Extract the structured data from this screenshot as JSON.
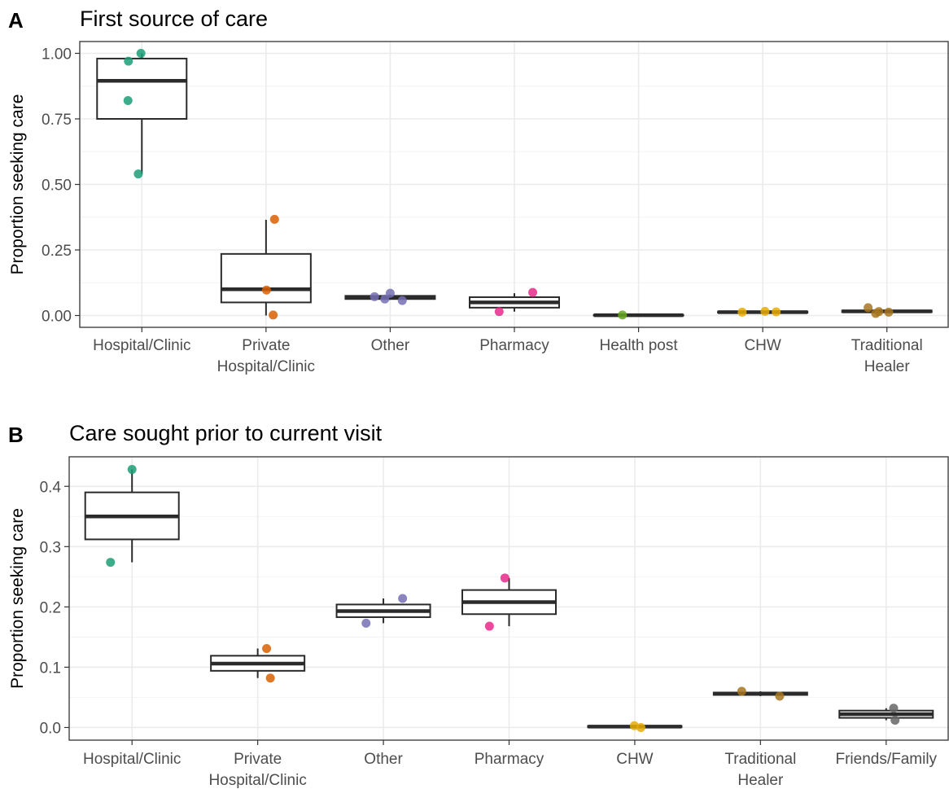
{
  "colors": {
    "hospital_clinic": "#1b9e77",
    "private_hospital_clinic": "#d95f02",
    "other": "#7570b3",
    "pharmacy": "#e7298a",
    "health_post": "#66a61e",
    "chw": "#e6ab02",
    "traditional_healer": "#a6761d",
    "friends_family": "#666666"
  },
  "chart_data": [
    {
      "type": "box",
      "panel_label": "A",
      "title": "First source of care",
      "ylabel": "Proportion seeking care",
      "xlabel": "",
      "ylim": [
        -0.045,
        1.045
      ],
      "yticks": [
        0.0,
        0.25,
        0.5,
        0.75,
        1.0
      ],
      "ytick_labels": [
        "0.00",
        "0.25",
        "0.50",
        "0.75",
        "1.00"
      ],
      "grid": true,
      "categories": [
        {
          "label": "Hospital/Clinic",
          "lines": [
            "Hospital/Clinic"
          ],
          "color_key": "hospital_clinic",
          "stats": {
            "min": 0.54,
            "q1": 0.75,
            "median": 0.895,
            "q3": 0.98,
            "max": 1.0
          },
          "points": [
            {
              "x_jitter": -0.3,
              "y": 0.97
            },
            {
              "x_jitter": -0.02,
              "y": 1.0
            },
            {
              "x_jitter": -0.31,
              "y": 0.82
            },
            {
              "x_jitter": -0.08,
              "y": 0.54
            }
          ]
        },
        {
          "label": "Private Hospital/Clinic",
          "lines": [
            "Private",
            "Hospital/Clinic"
          ],
          "color_key": "private_hospital_clinic",
          "stats": {
            "min": 0.0,
            "q1": 0.05,
            "median": 0.1,
            "q3": 0.235,
            "max": 0.365
          },
          "points": [
            {
              "x_jitter": 0.19,
              "y": 0.367
            },
            {
              "x_jitter": 0.01,
              "y": 0.097
            },
            {
              "x_jitter": 0.16,
              "y": 0.002
            }
          ]
        },
        {
          "label": "Other",
          "lines": [
            "Other"
          ],
          "color_key": "other",
          "stats": {
            "min": 0.06,
            "q1": 0.063,
            "median": 0.068,
            "q3": 0.075,
            "max": 0.08
          },
          "points": [
            {
              "x_jitter": -0.35,
              "y": 0.072
            },
            {
              "x_jitter": -0.12,
              "y": 0.063
            },
            {
              "x_jitter": 0.0,
              "y": 0.085
            },
            {
              "x_jitter": 0.27,
              "y": 0.057
            }
          ]
        },
        {
          "label": "Pharmacy",
          "lines": [
            "Pharmacy"
          ],
          "color_key": "pharmacy",
          "stats": {
            "min": 0.015,
            "q1": 0.03,
            "median": 0.05,
            "q3": 0.07,
            "max": 0.085
          },
          "points": [
            {
              "x_jitter": -0.34,
              "y": 0.015
            },
            {
              "x_jitter": 0.41,
              "y": 0.088
            }
          ]
        },
        {
          "label": "Health post",
          "lines": [
            "Health post"
          ],
          "color_key": "health_post",
          "stats": {
            "min": 0.0,
            "q1": 0.0,
            "median": 0.001,
            "q3": 0.002,
            "max": 0.003
          },
          "points": [
            {
              "x_jitter": -0.36,
              "y": 0.002
            }
          ]
        },
        {
          "label": "CHW",
          "lines": [
            "CHW"
          ],
          "color_key": "chw",
          "stats": {
            "min": 0.009,
            "q1": 0.011,
            "median": 0.013,
            "q3": 0.015,
            "max": 0.016
          },
          "points": [
            {
              "x_jitter": -0.46,
              "y": 0.013
            },
            {
              "x_jitter": 0.05,
              "y": 0.016
            },
            {
              "x_jitter": 0.3,
              "y": 0.014
            }
          ]
        },
        {
          "label": "Traditional Healer",
          "lines": [
            "Traditional",
            "Healer"
          ],
          "color_key": "traditional_healer",
          "stats": {
            "min": 0.01,
            "q1": 0.013,
            "median": 0.016,
            "q3": 0.019,
            "max": 0.022
          },
          "points": [
            {
              "x_jitter": -0.42,
              "y": 0.03
            },
            {
              "x_jitter": -0.25,
              "y": 0.008
            },
            {
              "x_jitter": -0.18,
              "y": 0.015
            },
            {
              "x_jitter": 0.04,
              "y": 0.013
            }
          ]
        }
      ]
    },
    {
      "type": "box",
      "panel_label": "B",
      "title": "Care sought prior to current visit",
      "ylabel": "Proportion seeking care",
      "xlabel": "",
      "ylim": [
        -0.021,
        0.449
      ],
      "yticks": [
        0.0,
        0.1,
        0.2,
        0.3,
        0.4
      ],
      "ytick_labels": [
        "0.0",
        "0.1",
        "0.2",
        "0.3",
        "0.4"
      ],
      "grid": true,
      "categories": [
        {
          "label": "Hospital/Clinic",
          "lines": [
            "Hospital/Clinic"
          ],
          "color_key": "hospital_clinic",
          "stats": {
            "min": 0.274,
            "q1": 0.312,
            "median": 0.35,
            "q3": 0.39,
            "max": 0.428
          },
          "points": [
            {
              "x_jitter": 0.0,
              "y": 0.428
            },
            {
              "x_jitter": -0.46,
              "y": 0.274
            }
          ]
        },
        {
          "label": "Private Hospital/Clinic",
          "lines": [
            "Private",
            "Hospital/Clinic"
          ],
          "color_key": "private_hospital_clinic",
          "stats": {
            "min": 0.082,
            "q1": 0.094,
            "median": 0.106,
            "q3": 0.119,
            "max": 0.131
          },
          "points": [
            {
              "x_jitter": 0.19,
              "y": 0.131
            },
            {
              "x_jitter": 0.27,
              "y": 0.082
            }
          ]
        },
        {
          "label": "Other",
          "lines": [
            "Other"
          ],
          "color_key": "other",
          "stats": {
            "min": 0.173,
            "q1": 0.183,
            "median": 0.193,
            "q3": 0.204,
            "max": 0.214
          },
          "points": [
            {
              "x_jitter": 0.41,
              "y": 0.214
            },
            {
              "x_jitter": -0.37,
              "y": 0.173
            }
          ]
        },
        {
          "label": "Pharmacy",
          "lines": [
            "Pharmacy"
          ],
          "color_key": "pharmacy",
          "stats": {
            "min": 0.168,
            "q1": 0.188,
            "median": 0.208,
            "q3": 0.228,
            "max": 0.248
          },
          "points": [
            {
              "x_jitter": -0.09,
              "y": 0.248
            },
            {
              "x_jitter": -0.42,
              "y": 0.168
            }
          ]
        },
        {
          "label": "CHW",
          "lines": [
            "CHW"
          ],
          "color_key": "chw",
          "stats": {
            "min": 0.0,
            "q1": 0.0005,
            "median": 0.0015,
            "q3": 0.0025,
            "max": 0.003
          },
          "points": [
            {
              "x_jitter": -0.01,
              "y": 0.003
            },
            {
              "x_jitter": 0.13,
              "y": 0.0
            }
          ]
        },
        {
          "label": "Traditional Healer",
          "lines": [
            "Traditional",
            "Healer"
          ],
          "color_key": "traditional_healer",
          "stats": {
            "min": 0.052,
            "q1": 0.054,
            "median": 0.056,
            "q3": 0.058,
            "max": 0.06
          },
          "points": [
            {
              "x_jitter": -0.4,
              "y": 0.06
            },
            {
              "x_jitter": 0.41,
              "y": 0.052
            }
          ]
        },
        {
          "label": "Friends/Family",
          "lines": [
            "Friends/Family"
          ],
          "color_key": "friends_family",
          "stats": {
            "min": 0.012,
            "q1": 0.016,
            "median": 0.022,
            "q3": 0.028,
            "max": 0.032
          },
          "points": [
            {
              "x_jitter": 0.16,
              "y": 0.032
            },
            {
              "x_jitter": 0.19,
              "y": 0.012
            }
          ]
        }
      ]
    }
  ]
}
